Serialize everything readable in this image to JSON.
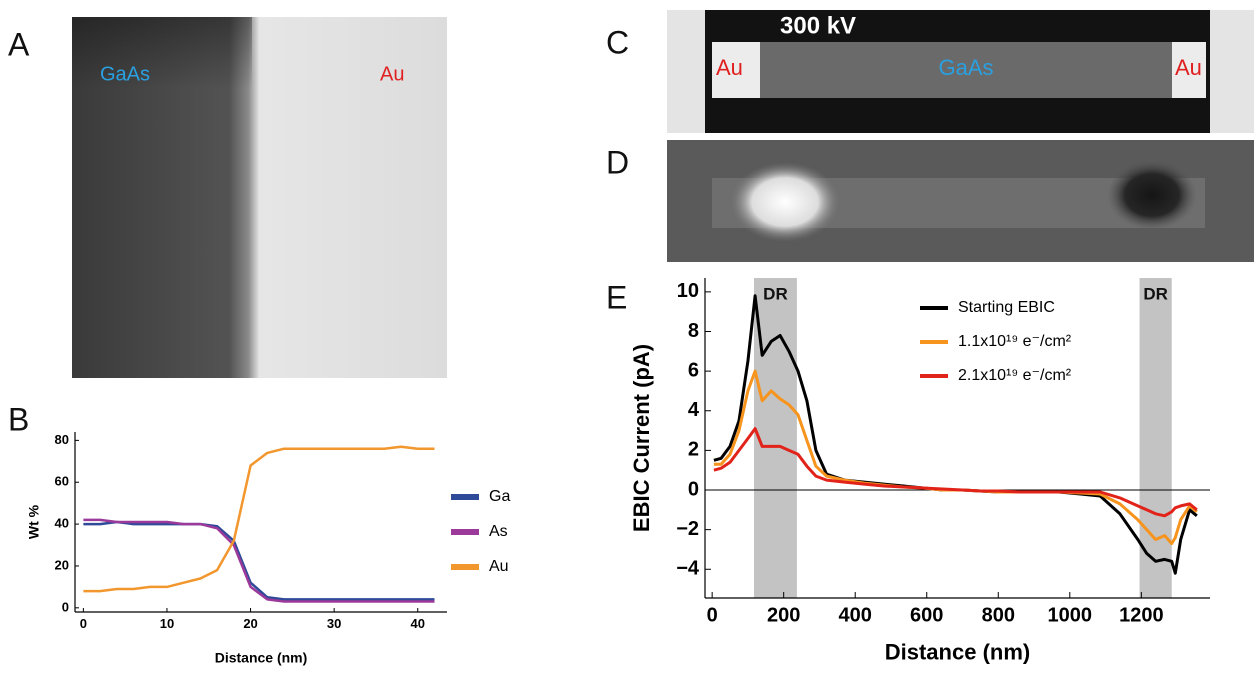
{
  "panels": {
    "A": {
      "letter": "A",
      "left_label": "GaAs",
      "right_label": "Au"
    },
    "C": {
      "letter": "C",
      "voltage": "300 kV",
      "left_label": "Au",
      "center_label": "GaAs",
      "right_label": "Au"
    },
    "D": {
      "letter": "D"
    }
  },
  "chart_data": [
    {
      "type": "line",
      "panel_label": "B",
      "xlabel": "Distance (nm)",
      "ylabel": "Wt %",
      "x": [
        0,
        2,
        4,
        6,
        8,
        10,
        12,
        14,
        16,
        18,
        20,
        22,
        24,
        26,
        28,
        30,
        32,
        34,
        36,
        38,
        40,
        42
      ],
      "series": [
        {
          "name": "Ga",
          "color": "#2f4a99",
          "values": [
            40,
            40,
            41,
            40,
            40,
            40,
            40,
            40,
            39,
            32,
            12,
            5,
            4,
            4,
            4,
            4,
            4,
            4,
            4,
            4,
            4,
            4
          ]
        },
        {
          "name": "As",
          "color": "#9b3a9b",
          "values": [
            42,
            42,
            41,
            41,
            41,
            41,
            40,
            40,
            38,
            30,
            10,
            4,
            3,
            3,
            3,
            3,
            3,
            3,
            3,
            3,
            3,
            3
          ]
        },
        {
          "name": "Au",
          "color": "#f2962e",
          "values": [
            8,
            8,
            9,
            9,
            10,
            10,
            12,
            14,
            18,
            32,
            68,
            74,
            76,
            76,
            76,
            76,
            76,
            76,
            76,
            77,
            76,
            76
          ]
        }
      ],
      "xlim": [
        -1,
        43.5
      ],
      "ylim": [
        -2,
        84
      ],
      "xticks": [
        0,
        10,
        20,
        30,
        40
      ],
      "yticks": [
        0,
        20,
        40,
        60,
        80
      ],
      "legend": "right"
    },
    {
      "type": "line",
      "panel_label": "E",
      "xlabel": "Distance (nm)",
      "ylabel": "EBIC Current (pA)",
      "x": [
        5,
        25,
        50,
        75,
        100,
        120,
        140,
        165,
        190,
        215,
        240,
        265,
        290,
        320,
        370,
        425,
        480,
        535,
        590,
        645,
        700,
        750,
        800,
        860,
        915,
        970,
        1030,
        1085,
        1140,
        1190,
        1215,
        1240,
        1265,
        1285,
        1295,
        1310,
        1335,
        1355
      ],
      "series": [
        {
          "name": "Starting EBIC",
          "color": "#000000",
          "values": [
            1.5,
            1.6,
            2.2,
            3.5,
            6.5,
            9.8,
            6.8,
            7.5,
            7.8,
            7.0,
            6.0,
            4.5,
            2.0,
            0.8,
            0.5,
            0.4,
            0.3,
            0.2,
            0.1,
            0.0,
            0.0,
            -0.05,
            -0.1,
            -0.1,
            -0.1,
            -0.1,
            -0.2,
            -0.3,
            -1.2,
            -2.5,
            -3.2,
            -3.6,
            -3.5,
            -3.6,
            -4.2,
            -2.5,
            -1.0,
            -1.3
          ]
        },
        {
          "name": "1.1x10¹⁹ e⁻/cm²",
          "color": "#f7941d",
          "values": [
            1.3,
            1.3,
            1.8,
            3.0,
            5.0,
            6.0,
            4.5,
            5.0,
            4.6,
            4.3,
            3.8,
            2.5,
            1.2,
            0.7,
            0.5,
            0.35,
            0.25,
            0.15,
            0.1,
            0.0,
            0.0,
            -0.05,
            -0.1,
            -0.1,
            -0.1,
            -0.1,
            -0.15,
            -0.2,
            -0.7,
            -1.5,
            -2.0,
            -2.5,
            -2.3,
            -2.7,
            -2.4,
            -1.5,
            -0.8,
            -1.1
          ]
        },
        {
          "name": "2.1x10¹⁹ e⁻/cm²",
          "color": "#e2231a",
          "values": [
            1.0,
            1.1,
            1.4,
            2.0,
            2.6,
            3.1,
            2.2,
            2.2,
            2.2,
            2.0,
            1.8,
            1.2,
            0.7,
            0.5,
            0.4,
            0.3,
            0.2,
            0.15,
            0.1,
            0.05,
            0.0,
            -0.05,
            -0.05,
            -0.1,
            -0.1,
            -0.1,
            -0.1,
            -0.1,
            -0.4,
            -0.8,
            -1.0,
            -1.2,
            -1.3,
            -1.1,
            -0.9,
            -0.8,
            -0.7,
            -1.0
          ]
        }
      ],
      "shaded_regions": [
        {
          "x": [
            117,
            237
          ],
          "label": "DR"
        },
        {
          "x": [
            1195,
            1285
          ],
          "label": "DR"
        }
      ],
      "reference_line": 0,
      "xlim": [
        -20,
        1392
      ],
      "ylim": [
        -5.45,
        10.7
      ],
      "xticks": [
        0,
        200,
        400,
        600,
        800,
        1000,
        1200
      ],
      "yticks": [
        {
          "value": -4,
          "label": "−4"
        },
        {
          "value": -2,
          "label": "−2"
        },
        0,
        2,
        4,
        6,
        8,
        10
      ],
      "legend": "upper right"
    }
  ]
}
